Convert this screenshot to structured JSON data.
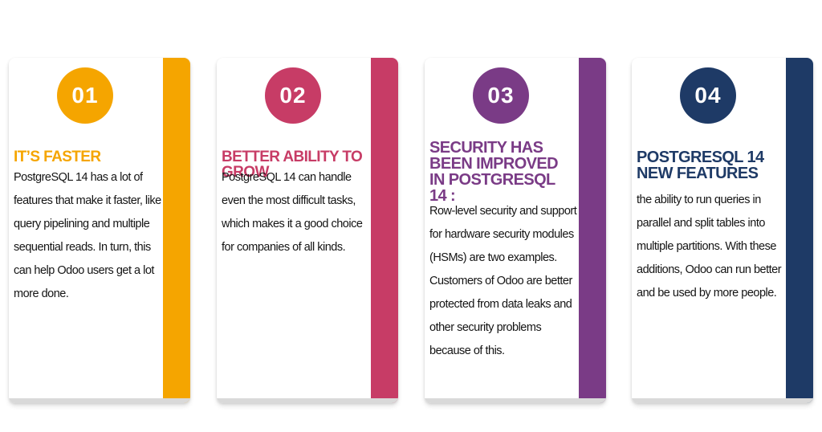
{
  "cards": [
    {
      "number": "01",
      "title": "IT’S FASTER",
      "body": " PostgreSQL 14 has a lot of features that make it faster, like query pipelining and multiple sequential reads. In turn, this can help Odoo users get a lot more done.",
      "color": "#f5a500"
    },
    {
      "number": "02",
      "title": "BETTER ABILITY TO GROW",
      "body": "PostgreSQL 14 can handle even the most difficult tasks, which makes it a good choice for companies of all kinds.",
      "color": "#c73c66"
    },
    {
      "number": "03",
      "title": "SECURITY HAS BEEN IMPROVED IN POSTGRESQL 14 :",
      "body": "Row-level security and support for hardware security modules (HSMs) are two examples. Customers of Odoo are better protected from data leaks and other security problems because of this.",
      "color": "#7a3b86"
    },
    {
      "number": "04",
      "title": "POSTGRESQL 14 NEW FEATURES",
      "body": " the ability to run queries in parallel and split tables into multiple partitions. With these additions, Odoo can run better and be used by more people.",
      "color": "#1e3a66"
    }
  ]
}
